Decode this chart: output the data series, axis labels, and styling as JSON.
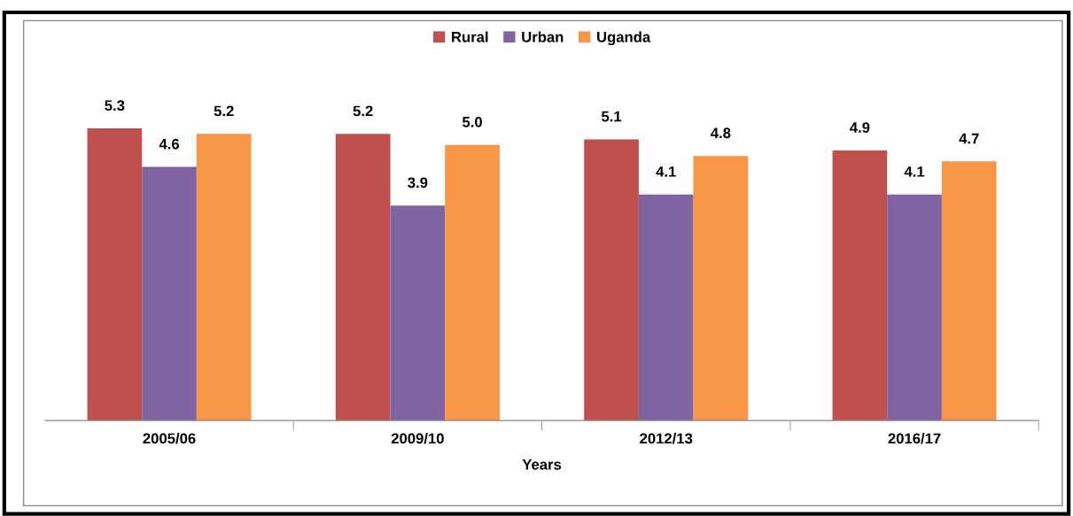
{
  "chart_data": {
    "type": "bar",
    "xlabel": "Years",
    "categories": [
      "2005/06",
      "2009/10",
      "2012/13",
      "2016/17"
    ],
    "series": [
      {
        "name": "Rural",
        "color": "#c0504d",
        "values": [
          5.3,
          5.2,
          5.1,
          4.9
        ],
        "value_labels": [
          "5.3",
          "5.2",
          "5.1",
          "4.9"
        ]
      },
      {
        "name": "Urban",
        "color": "#8064a2",
        "values": [
          4.6,
          3.9,
          4.1,
          4.1
        ],
        "value_labels": [
          "4.6",
          "3.9",
          "4.1",
          "4.1"
        ]
      },
      {
        "name": "Uganda",
        "color": "#f79646",
        "values": [
          5.2,
          5.0,
          4.8,
          4.7
        ],
        "value_labels": [
          "5.2",
          "5.0",
          "4.8",
          "4.7"
        ]
      }
    ],
    "ylim": [
      0,
      7.3
    ],
    "tick_labels": "x",
    "legend": "top",
    "grid": false
  }
}
